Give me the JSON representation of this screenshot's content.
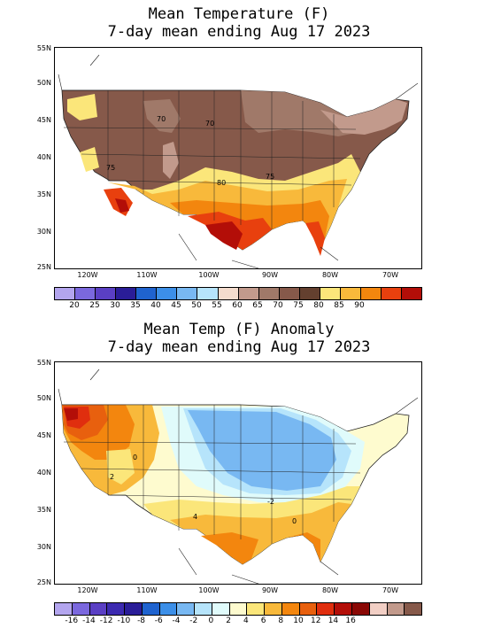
{
  "top_map": {
    "title_line1": "Mean Temperature (F)",
    "title_line2": "7-day mean ending Aug 17 2023",
    "lat_labels": [
      "55N",
      "50N",
      "45N",
      "40N",
      "35N",
      "30N",
      "25N"
    ],
    "lon_labels": [
      "120W",
      "110W",
      "100W",
      "90W",
      "80W",
      "70W"
    ],
    "contour_labels": [
      "70",
      "70",
      "75",
      "80",
      "75"
    ],
    "colorbar": {
      "colors": [
        "#b3a5ee",
        "#7b68de",
        "#5a3fc4",
        "#2a1d98",
        "#1f63cf",
        "#3c8fe8",
        "#78b8f2",
        "#b6e4fb",
        "#f4dccd",
        "#c29a8c",
        "#a07969",
        "#86594a",
        "#64402f",
        "#fbe67a",
        "#f8b93b",
        "#f3860e",
        "#e8400e",
        "#b30e08"
      ],
      "labels": [
        "20",
        "25",
        "30",
        "35",
        "40",
        "45",
        "50",
        "55",
        "60",
        "65",
        "70",
        "75",
        "80",
        "85",
        "90"
      ]
    }
  },
  "bottom_map": {
    "title_line1": "Mean Temp (F) Anomaly",
    "title_line2": "7-day mean ending Aug 17 2023",
    "lat_labels": [
      "55N",
      "50N",
      "45N",
      "40N",
      "35N",
      "30N",
      "25N"
    ],
    "lon_labels": [
      "120W",
      "110W",
      "100W",
      "90W",
      "80W",
      "70W"
    ],
    "contour_labels": [
      "0",
      "2",
      "4",
      "-2",
      "0"
    ],
    "colorbar": {
      "colors": [
        "#b3a5ee",
        "#7b68de",
        "#5a3fc4",
        "#3c2ab0",
        "#2a1d98",
        "#1f63cf",
        "#3c8fe8",
        "#78b8f2",
        "#b6e4fb",
        "#e0fbfb",
        "#fefbcf",
        "#fbe67a",
        "#f8b93b",
        "#f3860e",
        "#e8600e",
        "#e02e0e",
        "#b30e08",
        "#8a0805",
        "#f2cfc5",
        "#c29a8c",
        "#86594a"
      ],
      "labels": [
        "-16",
        "-14",
        "-12",
        "-10",
        "-8",
        "-6",
        "-4",
        "-2",
        "0",
        "2",
        "4",
        "6",
        "8",
        "10",
        "12",
        "14",
        "16"
      ]
    }
  }
}
